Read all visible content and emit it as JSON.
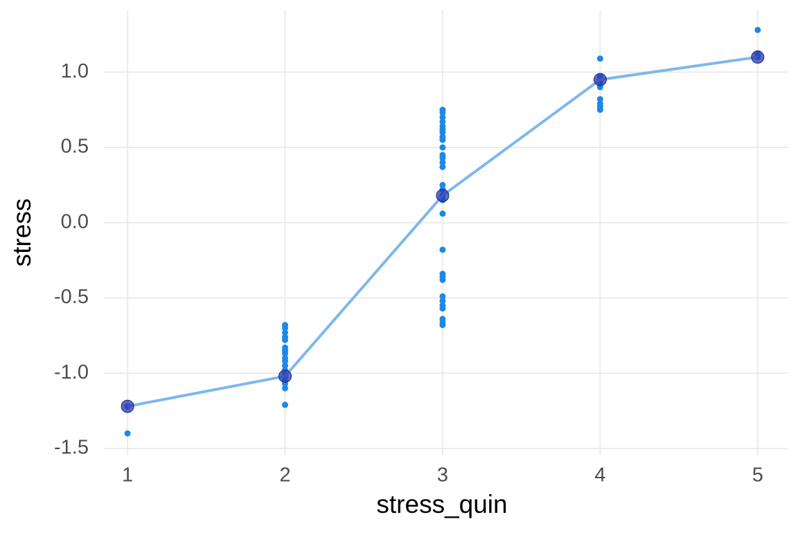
{
  "chart_data": {
    "type": "scatter",
    "x_label": "stress_quin",
    "y_label": "stress",
    "points": {
      "color": "#1e88e5",
      "x": [
        1,
        1,
        2,
        2,
        2,
        2,
        2,
        2,
        2,
        2,
        2,
        2,
        2,
        2,
        2,
        2,
        2,
        2,
        2,
        2,
        3,
        3,
        3,
        3,
        3,
        3,
        3,
        3,
        3,
        3,
        3,
        3,
        3,
        3,
        3,
        3,
        3,
        3,
        3,
        3,
        3,
        3,
        3,
        3,
        3,
        3,
        3,
        3,
        3,
        3,
        4,
        4,
        4,
        4,
        4,
        4,
        4,
        4,
        4,
        5,
        5,
        5
      ],
      "values": [
        -1.22,
        -1.4,
        -0.68,
        -0.7,
        -0.73,
        -0.76,
        -0.78,
        -0.83,
        -0.85,
        -0.87,
        -0.9,
        -0.92,
        -0.95,
        -0.98,
        -1.0,
        -1.02,
        -1.05,
        -1.07,
        -1.1,
        -1.21,
        0.75,
        0.73,
        0.7,
        0.67,
        0.64,
        0.62,
        0.6,
        0.57,
        0.55,
        0.5,
        0.45,
        0.43,
        0.4,
        0.37,
        0.25,
        0.22,
        0.18,
        0.15,
        0.06,
        -0.18,
        -0.34,
        -0.36,
        -0.38,
        -0.49,
        -0.52,
        -0.55,
        -0.57,
        -0.64,
        -0.66,
        -0.68,
        1.09,
        0.97,
        0.95,
        0.93,
        0.9,
        0.82,
        0.79,
        0.77,
        0.75,
        1.28,
        1.12,
        1.1
      ]
    },
    "means": {
      "line_color": "#7db7ee",
      "color": "#2b35b0",
      "x": [
        1,
        2,
        3,
        4,
        5
      ],
      "values": [
        -1.22,
        -1.02,
        0.18,
        0.95,
        1.1
      ]
    },
    "xlim": [
      0.85,
      5.19
    ],
    "ylim": [
      -1.546,
      1.41
    ],
    "xticks": [
      1,
      2,
      3,
      4,
      5
    ],
    "yticks": [
      {
        "value": -1.5,
        "label": "-1.5"
      },
      {
        "value": -1,
        "label": "-1.0"
      },
      -0.5,
      {
        "value": 0,
        "label": "0.0"
      },
      0.5,
      {
        "value": 1,
        "label": "1.0"
      }
    ],
    "grid": true
  }
}
